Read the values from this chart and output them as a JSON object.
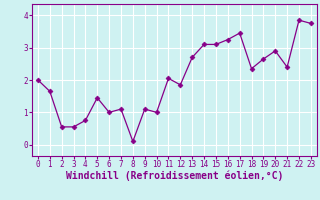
{
  "x": [
    0,
    1,
    2,
    3,
    4,
    5,
    6,
    7,
    8,
    9,
    10,
    11,
    12,
    13,
    14,
    15,
    16,
    17,
    18,
    19,
    20,
    21,
    22,
    23
  ],
  "y": [
    2.0,
    1.65,
    0.55,
    0.55,
    0.75,
    1.45,
    1.0,
    1.1,
    0.1,
    1.1,
    1.0,
    2.05,
    1.85,
    2.7,
    3.1,
    3.1,
    3.25,
    3.45,
    2.35,
    2.65,
    2.9,
    2.4,
    3.85,
    3.75
  ],
  "line_color": "#880088",
  "marker": "D",
  "marker_size": 2.5,
  "background_color": "#cff2f2",
  "grid_color": "#ffffff",
  "xlabel": "Windchill (Refroidissement éolien,°C)",
  "xlim": [
    -0.5,
    23.5
  ],
  "ylim": [
    -0.35,
    4.35
  ],
  "yticks": [
    0,
    1,
    2,
    3,
    4
  ],
  "xticks": [
    0,
    1,
    2,
    3,
    4,
    5,
    6,
    7,
    8,
    9,
    10,
    11,
    12,
    13,
    14,
    15,
    16,
    17,
    18,
    19,
    20,
    21,
    22,
    23
  ],
  "spine_color": "#880088",
  "tick_color": "#880088",
  "label_color": "#880088",
  "tick_fontsize": 5.5,
  "xlabel_fontsize": 7.0
}
